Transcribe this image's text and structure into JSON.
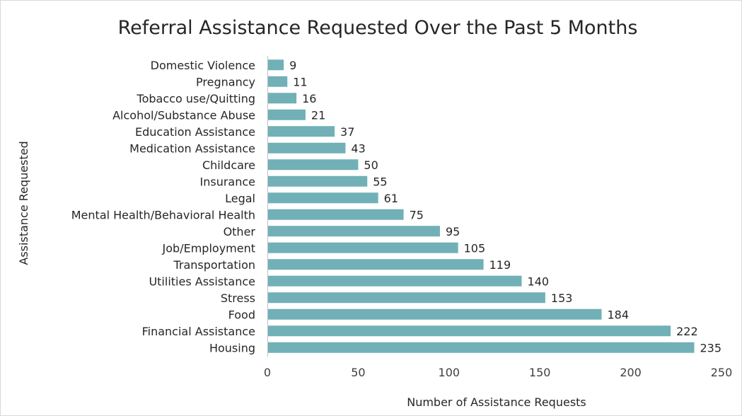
{
  "chart_data": {
    "type": "bar",
    "orientation": "horizontal",
    "title": "Referral Assistance Requested Over the Past 5 Months",
    "xlabel": "Number of Assistance Requests",
    "ylabel": "Assistance Requested",
    "xlim": [
      0,
      250
    ],
    "xticks": [
      0,
      50,
      100,
      150,
      200,
      250
    ],
    "grid": false,
    "legend": "none",
    "bar_color": "#71b0b7",
    "categories": [
      "Domestic Violence",
      "Pregnancy",
      "Tobacco use/Quitting",
      "Alcohol/Substance Abuse",
      "Education Assistance",
      "Medication Assistance",
      "Childcare",
      "Insurance",
      "Legal",
      "Mental Health/Behavioral Health",
      "Other",
      "Job/Employment",
      "Transportation",
      "Utilities Assistance",
      "Stress",
      "Food",
      "Financial Assistance",
      "Housing"
    ],
    "values": [
      9,
      11,
      16,
      21,
      37,
      43,
      50,
      55,
      61,
      75,
      95,
      105,
      119,
      140,
      153,
      184,
      222,
      235
    ]
  }
}
